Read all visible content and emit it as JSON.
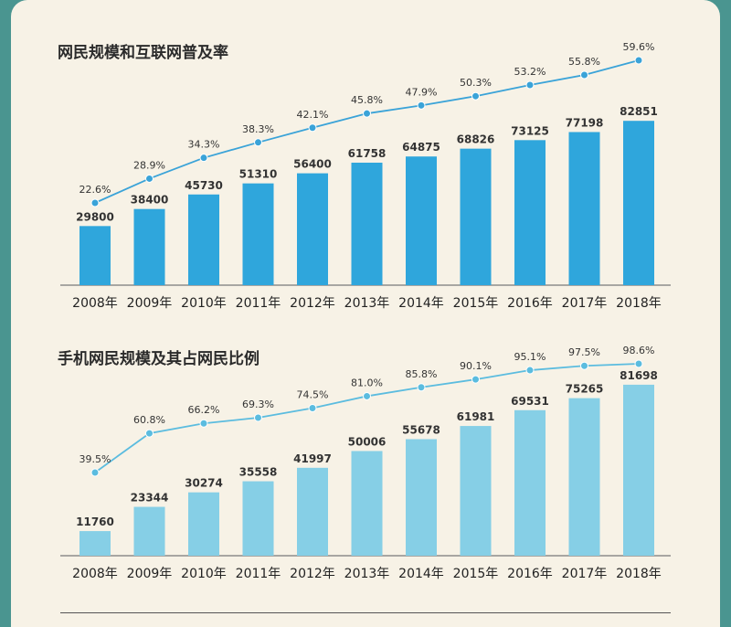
{
  "chart_data": [
    {
      "type": "bar",
      "title": "网民规模和互联网普及率",
      "categories": [
        "2008年",
        "2009年",
        "2010年",
        "2011年",
        "2012年",
        "2013年",
        "2014年",
        "2015年",
        "2016年",
        "2017年",
        "2018年"
      ],
      "series": [
        {
          "values": [
            29800,
            38400,
            45730,
            51310,
            56400,
            61758,
            64875,
            68826,
            73125,
            77198,
            82851
          ]
        },
        {
          "type": "line",
          "values": [
            "22.6%",
            "28.9%",
            "34.3%",
            "38.3%",
            "42.1%",
            "45.8%",
            "47.9%",
            "50.3%",
            "53.2%",
            "55.8%",
            "59.6%"
          ]
        }
      ],
      "colors": {
        "bar": "#2fa6dc",
        "line": "#3aa3d8"
      }
    },
    {
      "type": "bar",
      "title": "手机网民规模及其占网民比例",
      "categories": [
        "2008年",
        "2009年",
        "2010年",
        "2011年",
        "2012年",
        "2013年",
        "2014年",
        "2015年",
        "2016年",
        "2017年",
        "2018年"
      ],
      "series": [
        {
          "values": [
            11760,
            23344,
            30274,
            35558,
            41997,
            50006,
            55678,
            61981,
            69531,
            75265,
            81698
          ]
        },
        {
          "type": "line",
          "values": [
            "39.5%",
            "60.8%",
            "66.2%",
            "69.3%",
            "74.5%",
            "81.0%",
            "85.8%",
            "90.1%",
            "95.1%",
            "97.5%",
            "98.6%"
          ]
        }
      ],
      "colors": {
        "bar": "#86cfe6",
        "line": "#5bbcdf"
      }
    }
  ]
}
